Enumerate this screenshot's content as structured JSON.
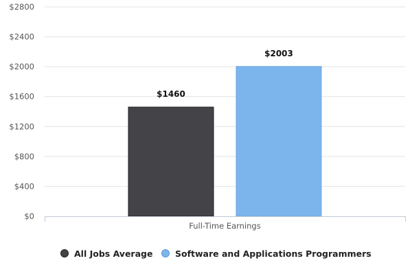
{
  "chart_data": {
    "type": "bar",
    "categories": [
      "Full-Time Earnings"
    ],
    "series": [
      {
        "name": "All Jobs Average",
        "values": [
          1460
        ],
        "color": "#434348"
      },
      {
        "name": "Software and Applications Programmers",
        "values": [
          2003
        ],
        "color": "#7cb5ec"
      }
    ],
    "ylim": [
      0,
      2800
    ],
    "yticks": [
      0,
      400,
      800,
      1200,
      1600,
      2000,
      2400,
      2800
    ],
    "ytick_labels": [
      "$0",
      "$400",
      "$800",
      "$1200",
      "$1600",
      "$2000",
      "$2400",
      "$2800"
    ],
    "data_labels": [
      "$1460",
      "$2003"
    ],
    "grid": true,
    "legend_position": "bottom-center"
  }
}
